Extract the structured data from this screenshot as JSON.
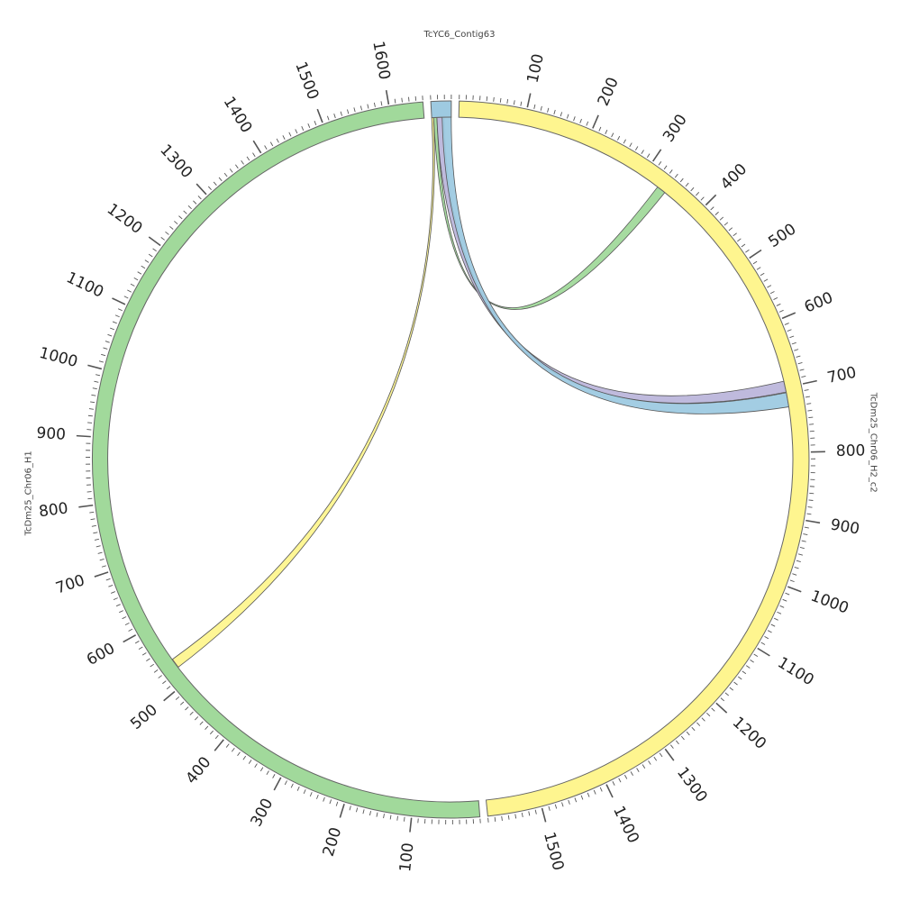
{
  "chart_data": {
    "type": "chord",
    "ideogram_order": "clockwise from top",
    "sequences": [
      {
        "name": "TcYC6_Contig63",
        "length": 30,
        "color": "#9ecae1"
      },
      {
        "name": "TcDm25_Chr06_H2_c2",
        "length": 1580,
        "color": "#fef58f"
      },
      {
        "name": "TcDm25_Chr06_H1",
        "length": 1650,
        "color": "#a1d99b"
      }
    ],
    "tick_interval": 100,
    "minor_tick_interval": 10,
    "links": [
      {
        "source": {
          "seq": "TcYC6_Contig63",
          "start": 0,
          "end": 3
        },
        "target": {
          "seq": "TcDm25_Chr06_H1",
          "start": 525,
          "end": 540
        },
        "color": "#fef58f"
      },
      {
        "source": {
          "seq": "TcYC6_Contig63",
          "start": 3,
          "end": 8
        },
        "target": {
          "seq": "TcDm25_Chr06_H2_c2",
          "start": 328,
          "end": 342
        },
        "color": "#a1d99b"
      },
      {
        "source": {
          "seq": "TcYC6_Contig63",
          "start": 8,
          "end": 19
        },
        "target": {
          "seq": "TcDm25_Chr06_H2_c2",
          "start": 690,
          "end": 707
        },
        "color": "#bcb6db"
      },
      {
        "source": {
          "seq": "TcYC6_Contig63",
          "start": 16,
          "end": 30
        },
        "target": {
          "seq": "TcDm25_Chr06_H2_c2",
          "start": 708,
          "end": 730
        },
        "color": "#9ecae1"
      }
    ]
  }
}
